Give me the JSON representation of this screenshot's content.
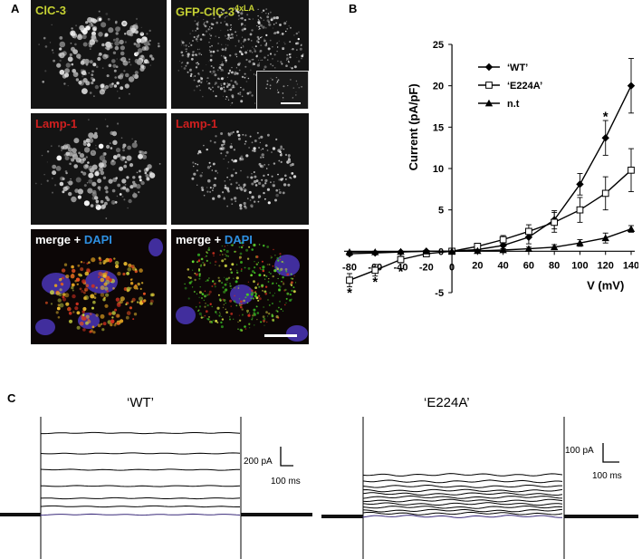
{
  "panel_a": {
    "label": "A",
    "images": [
      {
        "id": "clc3",
        "label": "ClC-3",
        "color": "#c6d233"
      },
      {
        "id": "gfp-clc3",
        "label_main": "GFP-ClC-3",
        "label_sup": "4xLA",
        "color": "#c6d233"
      },
      {
        "id": "lamp1-left",
        "label": "Lamp-1",
        "color": "#d01f1f"
      },
      {
        "id": "lamp1-right",
        "label": "Lamp-1",
        "color": "#d01f1f"
      },
      {
        "id": "merge-left",
        "label_main": "merge + ",
        "label_dapi": "DAPI"
      },
      {
        "id": "merge-right",
        "label_main": "merge + ",
        "label_dapi": "DAPI"
      }
    ]
  },
  "panel_b": {
    "label": "B",
    "chart_data": {
      "type": "line",
      "xlabel": "V (mV)",
      "ylabel": "Current (pA/pF)",
      "xlim": [
        -80,
        140
      ],
      "ylim": [
        -5,
        25
      ],
      "x_ticks": [
        -80,
        -60,
        -40,
        -20,
        0,
        20,
        40,
        60,
        80,
        100,
        120,
        140
      ],
      "y_ticks": [
        -5,
        0,
        5,
        10,
        15,
        20,
        25
      ],
      "legend_position": "top-right",
      "series": [
        {
          "name": "‘WT’",
          "marker": "diamond-filled",
          "x": [
            -80,
            -60,
            -40,
            -20,
            0,
            20,
            40,
            60,
            80,
            100,
            120,
            140
          ],
          "y": [
            -0.3,
            -0.2,
            -0.1,
            0.0,
            0.0,
            0.2,
            0.7,
            1.7,
            3.8,
            8.1,
            13.7,
            20.0
          ],
          "err": [
            0.2,
            0.2,
            0.1,
            0.1,
            0.1,
            0.2,
            0.4,
            0.8,
            1.1,
            1.3,
            2.1,
            3.3
          ]
        },
        {
          "name": "‘E224A’",
          "marker": "square-open",
          "x": [
            -80,
            -60,
            -40,
            -20,
            0,
            20,
            40,
            60,
            80,
            100,
            120,
            140
          ],
          "y": [
            -3.5,
            -2.3,
            -1.0,
            -0.3,
            0.0,
            0.6,
            1.4,
            2.4,
            3.5,
            5.0,
            7.0,
            9.8
          ],
          "err": [
            0.8,
            0.7,
            0.4,
            0.2,
            0.1,
            0.3,
            0.5,
            0.8,
            1.2,
            1.5,
            2.0,
            2.6
          ]
        },
        {
          "name": "n.t",
          "marker": "triangle-filled",
          "x": [
            -80,
            -60,
            -40,
            -20,
            0,
            20,
            40,
            60,
            80,
            100,
            120,
            140
          ],
          "y": [
            -0.1,
            -0.1,
            -0.05,
            0.0,
            0.0,
            0.05,
            0.15,
            0.3,
            0.5,
            1.0,
            1.6,
            2.7
          ],
          "err": [
            0.1,
            0.1,
            0.05,
            0.05,
            0.05,
            0.1,
            0.15,
            0.2,
            0.3,
            0.4,
            0.6,
            0.4
          ]
        }
      ],
      "annotations": [
        {
          "text": "*",
          "x": -80,
          "y": -5.0
        },
        {
          "text": "*",
          "x": -60,
          "y": -3.7
        },
        {
          "text": "*",
          "x": -40,
          "y": -2.4
        },
        {
          "text": "*",
          "x": 120,
          "y": 16.3
        }
      ]
    }
  },
  "panel_c": {
    "label": "C",
    "wt": {
      "title": "‘WT’",
      "scale_y": "200 pA",
      "scale_x": "100 ms",
      "trace_levels": [
        0,
        0.1,
        0.2,
        0.35,
        0.55,
        0.75,
        1.0
      ]
    },
    "e224a": {
      "title": "‘E224A’",
      "scale_y": "100 pA",
      "scale_x": "100 ms",
      "trace_levels": [
        0,
        0.07,
        0.14,
        0.22,
        0.3,
        0.38,
        0.46,
        0.54,
        0.62,
        0.72,
        0.84,
        1.0
      ]
    }
  }
}
